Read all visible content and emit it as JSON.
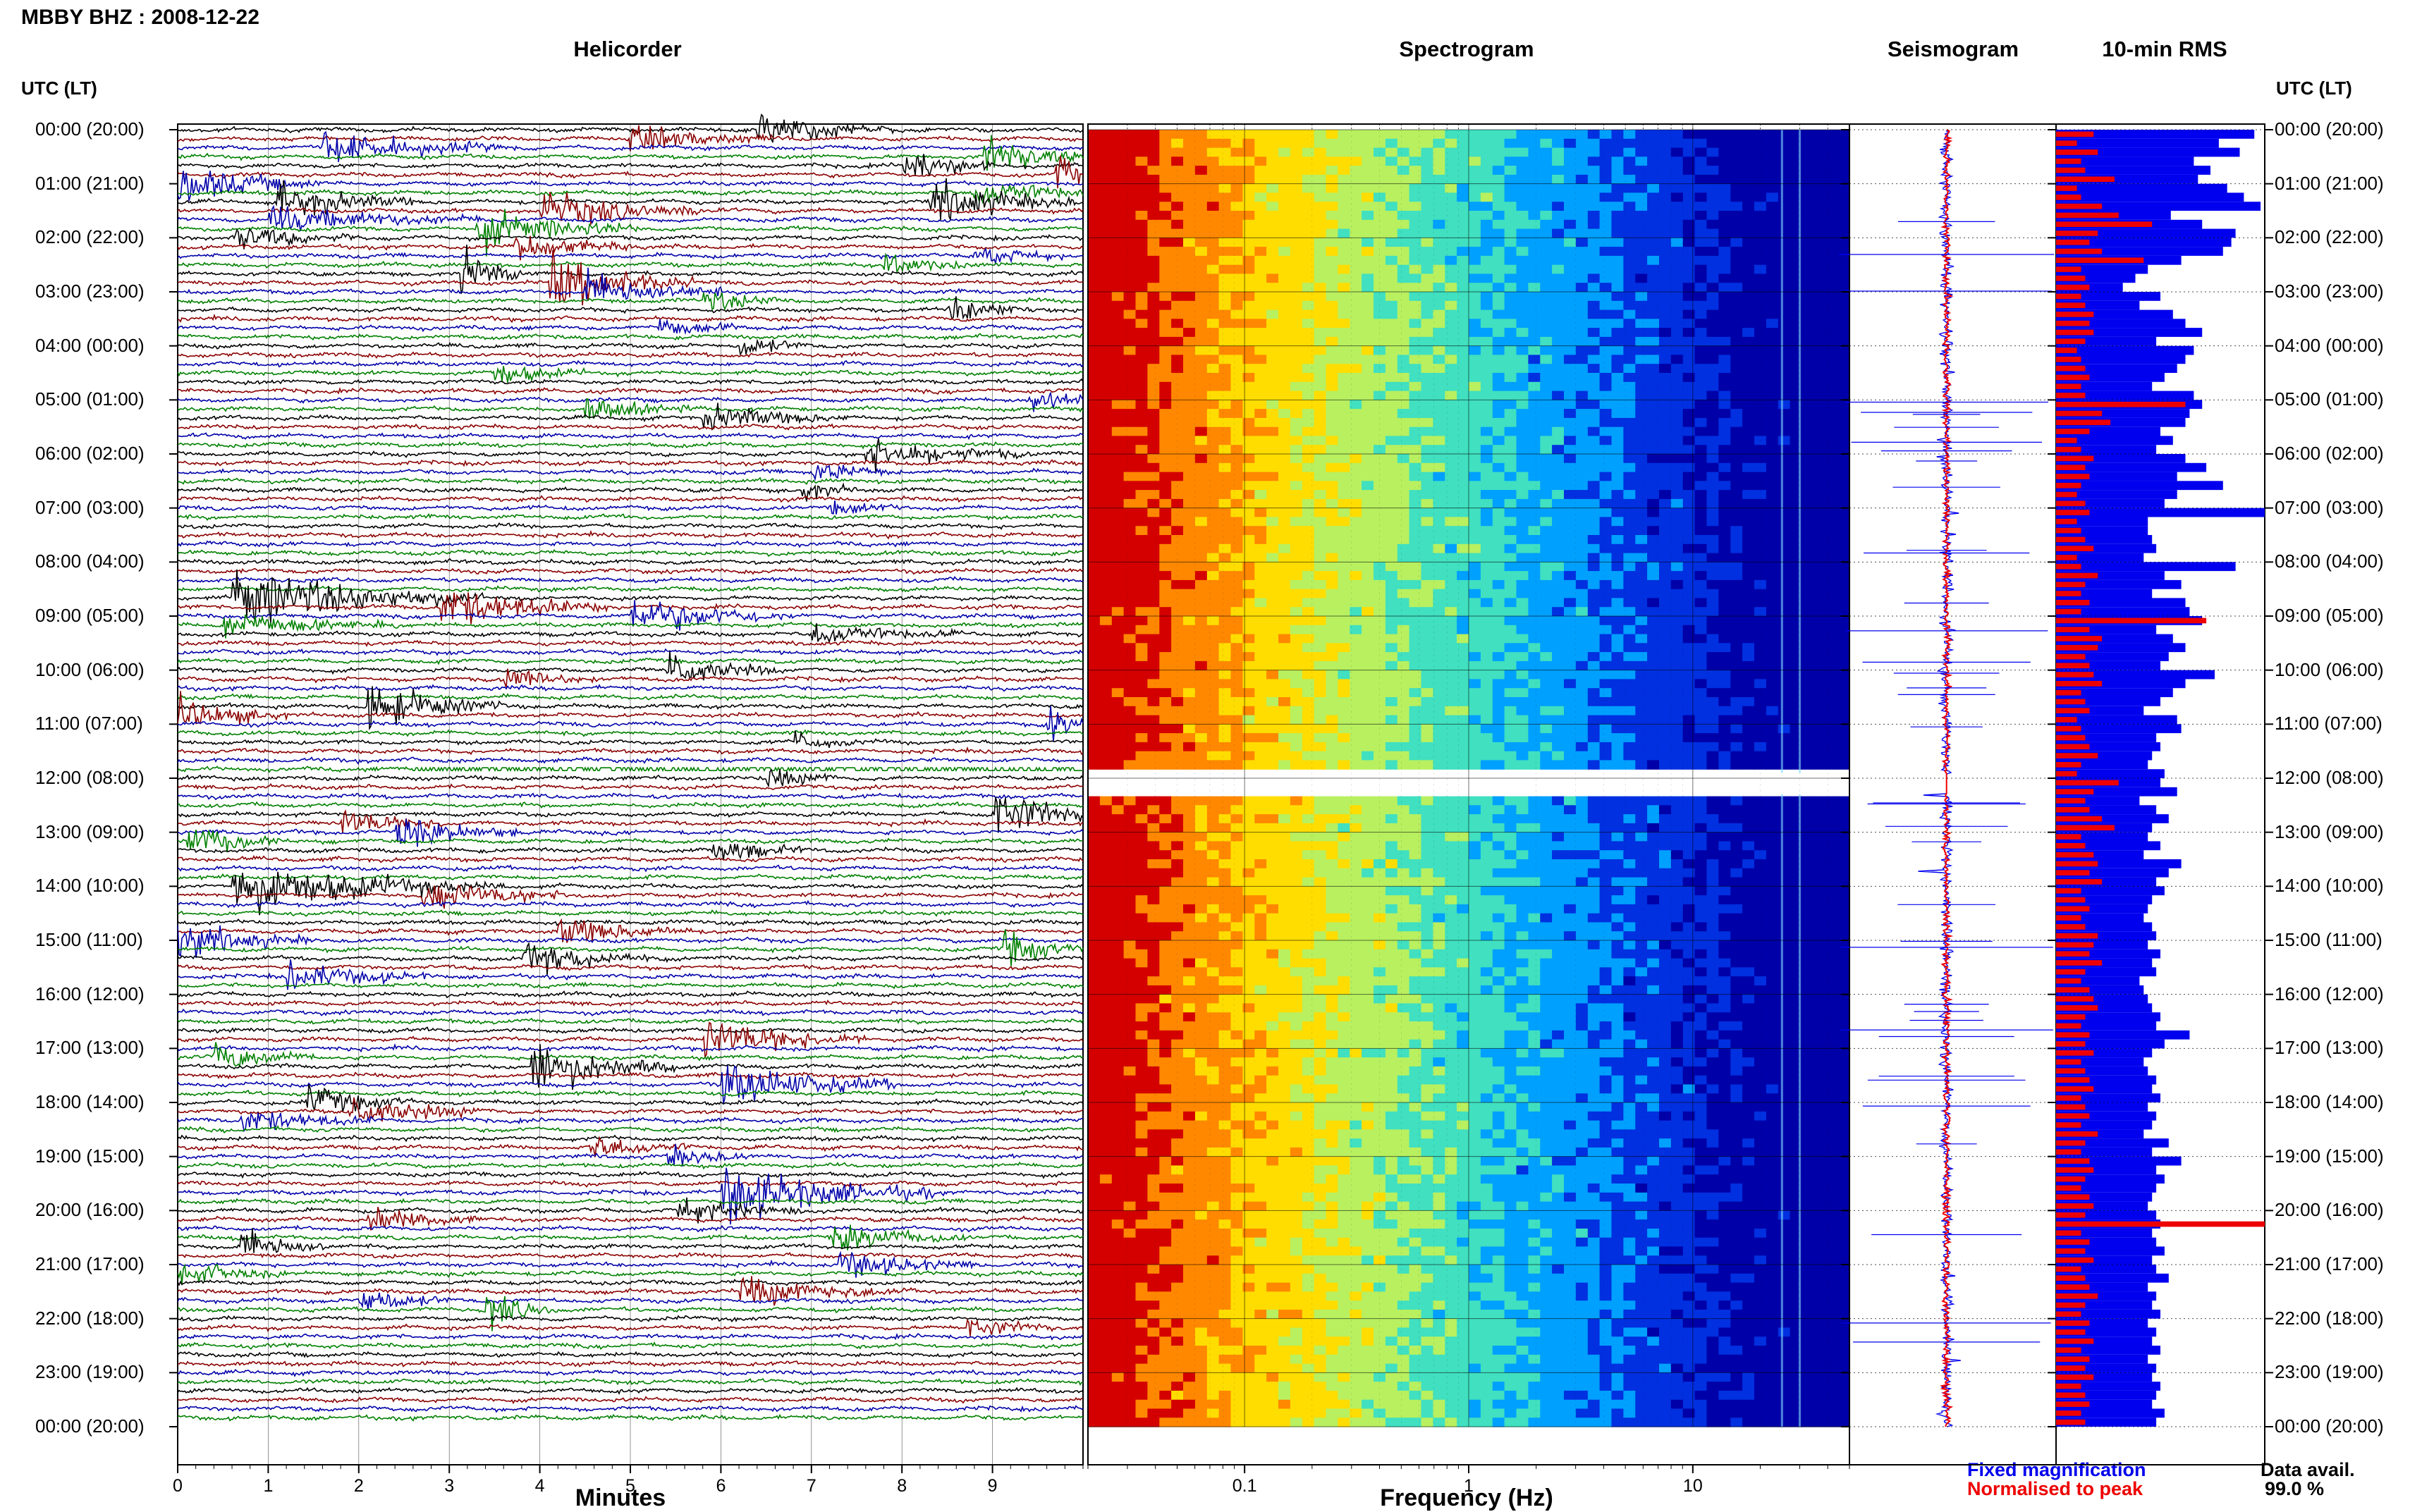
{
  "header": {
    "station_title": "MBBY BHZ : 2008-12-22",
    "panel_titles": {
      "helicorder": "Helicorder",
      "spectrogram": "Spectrogram",
      "seismogram": "Seismogram",
      "rms": "10-min RMS"
    },
    "time_axis_title_left": "UTC (LT)",
    "time_axis_title_right": "UTC (LT)"
  },
  "chart_data": [
    {
      "type": "line",
      "panel": "Helicorder",
      "xlabel": "Minutes",
      "x_ticks": [
        "0",
        "1",
        "2",
        "3",
        "4",
        "5",
        "6",
        "7",
        "8",
        "9"
      ],
      "xlim": [
        0,
        10
      ],
      "rows_per_hour": 6,
      "trace_colors": [
        "#000000",
        "#8b0000",
        "#0000aa",
        "#008000"
      ],
      "y_tick_labels": [
        "00:00 (20:00)",
        "01:00 (21:00)",
        "02:00 (22:00)",
        "03:00 (23:00)",
        "04:00 (00:00)",
        "05:00 (01:00)",
        "06:00 (02:00)",
        "07:00 (03:00)",
        "08:00 (04:00)",
        "09:00 (05:00)",
        "10:00 (06:00)",
        "11:00 (07:00)",
        "12:00 (08:00)",
        "13:00 (09:00)",
        "14:00 (10:00)",
        "15:00 (11:00)",
        "16:00 (12:00)",
        "17:00 (13:00)",
        "18:00 (14:00)",
        "19:00 (15:00)",
        "20:00 (16:00)",
        "21:00 (17:00)",
        "22:00 (18:00)",
        "23:00 (19:00)",
        "00:00 (20:00)"
      ],
      "events": [
        {
          "row": 0,
          "minute": 6.4,
          "amp": 2.2,
          "len": 1.5
        },
        {
          "row": 1,
          "minute": 5.0,
          "amp": 1.4,
          "len": 1.8
        },
        {
          "row": 2,
          "minute": 1.6,
          "amp": 1.8,
          "len": 2.2
        },
        {
          "row": 3,
          "minute": 8.9,
          "amp": 2.5,
          "len": 1.2
        },
        {
          "row": 4,
          "minute": 8.0,
          "amp": 2.2,
          "len": 1.0
        },
        {
          "row": 5,
          "minute": 9.7,
          "amp": 3.2,
          "len": 0.4
        },
        {
          "row": 6,
          "minute": 0.0,
          "amp": 2.4,
          "len": 1.6
        },
        {
          "row": 7,
          "minute": 8.8,
          "amp": 1.8,
          "len": 1.5
        },
        {
          "row": 8,
          "minute": 1.1,
          "amp": 2.4,
          "len": 1.5
        },
        {
          "row": 8,
          "minute": 8.3,
          "amp": 2.5,
          "len": 1.8
        },
        {
          "row": 9,
          "minute": 4.0,
          "amp": 2.2,
          "len": 2.0
        },
        {
          "row": 10,
          "minute": 1.0,
          "amp": 1.6,
          "len": 2.5
        },
        {
          "row": 11,
          "minute": 3.3,
          "amp": 2.4,
          "len": 1.8
        },
        {
          "row": 12,
          "minute": 0.6,
          "amp": 1.6,
          "len": 1.4
        },
        {
          "row": 13,
          "minute": 3.7,
          "amp": 1.6,
          "len": 1.4
        },
        {
          "row": 14,
          "minute": 8.8,
          "amp": 1.4,
          "len": 1.0
        },
        {
          "row": 15,
          "minute": 7.8,
          "amp": 1.4,
          "len": 1.0
        },
        {
          "row": 16,
          "minute": 3.1,
          "amp": 3.2,
          "len": 0.7
        },
        {
          "row": 17,
          "minute": 4.1,
          "amp": 3.6,
          "len": 1.6
        },
        {
          "row": 18,
          "minute": 4.5,
          "amp": 2.4,
          "len": 1.5
        },
        {
          "row": 19,
          "minute": 5.8,
          "amp": 1.4,
          "len": 1.0
        },
        {
          "row": 20,
          "minute": 8.5,
          "amp": 1.6,
          "len": 1.2
        },
        {
          "row": 22,
          "minute": 5.3,
          "amp": 1.3,
          "len": 1.0
        },
        {
          "row": 24,
          "minute": 6.2,
          "amp": 1.4,
          "len": 0.8
        },
        {
          "row": 27,
          "minute": 3.5,
          "amp": 1.4,
          "len": 1.0
        },
        {
          "row": 30,
          "minute": 9.4,
          "amp": 2.2,
          "len": 0.6
        },
        {
          "row": 31,
          "minute": 4.5,
          "amp": 1.5,
          "len": 1.2
        },
        {
          "row": 32,
          "minute": 5.8,
          "amp": 1.6,
          "len": 1.6
        },
        {
          "row": 36,
          "minute": 7.6,
          "amp": 2.0,
          "len": 1.8
        },
        {
          "row": 38,
          "minute": 7.0,
          "amp": 1.4,
          "len": 1.0
        },
        {
          "row": 40,
          "minute": 6.9,
          "amp": 1.4,
          "len": 0.6
        },
        {
          "row": 42,
          "minute": 7.2,
          "amp": 1.2,
          "len": 0.8
        },
        {
          "row": 52,
          "minute": 0.6,
          "amp": 3.8,
          "len": 2.8
        },
        {
          "row": 53,
          "minute": 2.9,
          "amp": 2.6,
          "len": 2.0
        },
        {
          "row": 54,
          "minute": 5.0,
          "amp": 2.4,
          "len": 1.8
        },
        {
          "row": 55,
          "minute": 0.5,
          "amp": 1.6,
          "len": 2.0
        },
        {
          "row": 56,
          "minute": 7.0,
          "amp": 1.4,
          "len": 1.6
        },
        {
          "row": 60,
          "minute": 5.4,
          "amp": 2.4,
          "len": 1.2
        },
        {
          "row": 61,
          "minute": 3.6,
          "amp": 1.4,
          "len": 1.0
        },
        {
          "row": 64,
          "minute": 2.1,
          "amp": 3.0,
          "len": 1.5
        },
        {
          "row": 65,
          "minute": 0.0,
          "amp": 2.2,
          "len": 1.2
        },
        {
          "row": 66,
          "minute": 9.6,
          "amp": 3.2,
          "len": 0.4
        },
        {
          "row": 68,
          "minute": 6.8,
          "amp": 1.2,
          "len": 0.8
        },
        {
          "row": 72,
          "minute": 6.5,
          "amp": 1.4,
          "len": 0.8
        },
        {
          "row": 76,
          "minute": 9.0,
          "amp": 3.4,
          "len": 1.2
        },
        {
          "row": 77,
          "minute": 1.8,
          "amp": 1.8,
          "len": 1.2
        },
        {
          "row": 78,
          "minute": 2.4,
          "amp": 2.2,
          "len": 1.4
        },
        {
          "row": 79,
          "minute": 0.1,
          "amp": 2.2,
          "len": 1.0
        },
        {
          "row": 80,
          "minute": 5.9,
          "amp": 1.6,
          "len": 1.0
        },
        {
          "row": 84,
          "minute": 0.6,
          "amp": 3.2,
          "len": 3.0
        },
        {
          "row": 85,
          "minute": 2.7,
          "amp": 1.8,
          "len": 1.8
        },
        {
          "row": 89,
          "minute": 4.2,
          "amp": 1.8,
          "len": 1.5
        },
        {
          "row": 90,
          "minute": 0.0,
          "amp": 2.2,
          "len": 1.5
        },
        {
          "row": 91,
          "minute": 9.1,
          "amp": 2.4,
          "len": 0.9
        },
        {
          "row": 92,
          "minute": 3.8,
          "amp": 2.0,
          "len": 1.6
        },
        {
          "row": 94,
          "minute": 1.2,
          "amp": 1.8,
          "len": 1.6
        },
        {
          "row": 101,
          "minute": 5.8,
          "amp": 2.6,
          "len": 1.8
        },
        {
          "row": 103,
          "minute": 0.4,
          "amp": 1.8,
          "len": 1.2
        },
        {
          "row": 104,
          "minute": 3.9,
          "amp": 3.6,
          "len": 1.6
        },
        {
          "row": 106,
          "minute": 6.0,
          "amp": 2.8,
          "len": 2.0
        },
        {
          "row": 108,
          "minute": 1.4,
          "amp": 2.0,
          "len": 1.2
        },
        {
          "row": 109,
          "minute": 1.9,
          "amp": 2.0,
          "len": 1.6
        },
        {
          "row": 110,
          "minute": 0.7,
          "amp": 1.6,
          "len": 1.5
        },
        {
          "row": 113,
          "minute": 4.5,
          "amp": 1.6,
          "len": 1.2
        },
        {
          "row": 114,
          "minute": 5.4,
          "amp": 1.4,
          "len": 1.0
        },
        {
          "row": 118,
          "minute": 6.0,
          "amp": 3.6,
          "len": 2.4
        },
        {
          "row": 120,
          "minute": 5.5,
          "amp": 1.6,
          "len": 1.6
        },
        {
          "row": 121,
          "minute": 2.1,
          "amp": 1.6,
          "len": 1.2
        },
        {
          "row": 123,
          "minute": 7.2,
          "amp": 1.8,
          "len": 1.5
        },
        {
          "row": 124,
          "minute": 0.7,
          "amp": 2.4,
          "len": 1.0
        },
        {
          "row": 126,
          "minute": 7.3,
          "amp": 1.8,
          "len": 1.5
        },
        {
          "row": 127,
          "minute": 0.0,
          "amp": 1.6,
          "len": 1.2
        },
        {
          "row": 129,
          "minute": 6.2,
          "amp": 1.8,
          "len": 2.0
        },
        {
          "row": 130,
          "minute": 2.0,
          "amp": 1.8,
          "len": 1.0
        },
        {
          "row": 131,
          "minute": 3.4,
          "amp": 2.4,
          "len": 0.8
        },
        {
          "row": 133,
          "minute": 8.7,
          "amp": 1.4,
          "len": 1.0
        }
      ],
      "gap": {
        "row": 71,
        "from_minute": 2.6,
        "to_minute": 10.0
      }
    },
    {
      "type": "heatmap",
      "panel": "Spectrogram",
      "xlabel": "Frequency (Hz)",
      "x_scale": "log",
      "xlim": [
        0.02,
        50
      ],
      "x_tick_labels": [
        {
          "value": 0.1,
          "label": "0.1"
        },
        {
          "value": 1,
          "label": "1"
        },
        {
          "value": 10,
          "label": "10"
        }
      ],
      "colormap": [
        "#d40000",
        "#ff8800",
        "#ffdd00",
        "#b8f060",
        "#40e0c0",
        "#00a0ff",
        "#0030e0",
        "#0000a8"
      ],
      "gap_hours": [
        11.9,
        12.3
      ],
      "bright_lines_hz": [
        25,
        30
      ]
    },
    {
      "type": "line",
      "panel": "Seismogram",
      "series": [
        {
          "name": "Fixed magnification",
          "color": "#0000ee"
        },
        {
          "name": "Normalised to peak",
          "color": "#ee0000"
        }
      ],
      "gap_hours": [
        11.9,
        12.3
      ]
    },
    {
      "type": "bar",
      "panel": "10-min RMS",
      "orientation": "horizontal",
      "bins_per_hour": 6,
      "xlim": [
        0,
        1
      ],
      "series": [
        {
          "name": "Fixed magnification",
          "color": "#0000ee",
          "values": [
            0.95,
            0.78,
            0.88,
            0.66,
            0.74,
            0.68,
            0.82,
            0.9,
            0.98,
            0.55,
            0.7,
            0.86,
            0.84,
            0.8,
            0.6,
            0.44,
            0.38,
            0.32,
            0.5,
            0.4,
            0.56,
            0.62,
            0.7,
            0.48,
            0.66,
            0.62,
            0.58,
            0.52,
            0.46,
            0.66,
            0.7,
            0.64,
            0.62,
            0.5,
            0.56,
            0.48,
            0.62,
            0.72,
            0.58,
            0.8,
            0.58,
            0.52,
            1.0,
            0.44,
            0.44,
            0.46,
            0.48,
            0.42,
            0.86,
            0.52,
            0.6,
            0.46,
            0.62,
            0.64,
            0.7,
            0.48,
            0.56,
            0.62,
            0.54,
            0.5,
            0.76,
            0.62,
            0.56,
            0.5,
            0.42,
            0.58,
            0.6,
            0.48,
            0.5,
            0.46,
            0.44,
            0.52,
            0.5,
            0.58,
            0.4,
            0.48,
            0.54,
            0.46,
            0.44,
            0.5,
            0.42,
            0.6,
            0.54,
            0.48,
            0.52,
            0.46,
            0.44,
            0.42,
            0.46,
            0.48,
            0.44,
            0.5,
            0.46,
            0.48,
            0.4,
            0.42,
            0.44,
            0.46,
            0.5,
            0.48,
            0.64,
            0.52,
            0.46,
            0.42,
            0.44,
            0.48,
            0.46,
            0.5,
            0.44,
            0.48,
            0.46,
            0.42,
            0.54,
            0.46,
            0.6,
            0.48,
            0.52,
            0.48,
            0.46,
            0.44,
            0.48,
            0.5,
            0.46,
            0.48,
            0.52,
            0.46,
            0.48,
            0.54,
            0.44,
            0.48,
            0.46,
            0.5,
            0.44,
            0.48,
            0.46,
            0.5,
            0.44,
            0.48,
            0.46,
            0.5,
            0.48,
            0.46,
            0.52,
            0.48
          ]
        },
        {
          "name": "Normalised to peak",
          "color": "#ee0000",
          "values": [
            0.18,
            0.1,
            0.2,
            0.12,
            0.14,
            0.28,
            0.1,
            0.12,
            0.22,
            0.3,
            0.46,
            0.2,
            0.16,
            0.22,
            0.42,
            0.12,
            0.14,
            0.16,
            0.12,
            0.14,
            0.18,
            0.16,
            0.18,
            0.14,
            0.1,
            0.12,
            0.14,
            0.16,
            0.12,
            0.14,
            0.62,
            0.22,
            0.26,
            0.16,
            0.1,
            0.12,
            0.18,
            0.14,
            0.16,
            0.12,
            0.1,
            0.14,
            0.16,
            0.1,
            0.12,
            0.14,
            0.18,
            0.1,
            0.12,
            0.2,
            0.14,
            0.12,
            0.16,
            0.12,
            0.72,
            0.16,
            0.22,
            0.2,
            0.14,
            0.16,
            0.18,
            0.22,
            0.12,
            0.14,
            0.16,
            0.1,
            0.12,
            0.14,
            0.16,
            0.2,
            0.12,
            0.1,
            0.3,
            0.18,
            0.14,
            0.16,
            0.22,
            0.28,
            0.12,
            0.14,
            0.18,
            0.2,
            0.16,
            0.22,
            0.12,
            0.14,
            0.16,
            0.12,
            0.14,
            0.2,
            0.18,
            0.16,
            0.22,
            0.14,
            0.12,
            0.16,
            0.18,
            0.2,
            0.14,
            0.12,
            0.16,
            0.14,
            0.18,
            0.12,
            0.14,
            0.16,
            0.18,
            0.12,
            0.14,
            0.16,
            0.12,
            0.2,
            0.14,
            0.12,
            0.16,
            0.18,
            0.14,
            0.12,
            0.16,
            0.18,
            0.14,
            1.0,
            0.12,
            0.16,
            0.14,
            0.18,
            0.12,
            0.14,
            0.16,
            0.2,
            0.14,
            0.12,
            0.16,
            0.14,
            0.18,
            0.12,
            0.16,
            0.14,
            0.18,
            0.12,
            0.14,
            0.16,
            0.12,
            0.14
          ]
        }
      ]
    }
  ],
  "legend": {
    "fixed_label": "Fixed magnification",
    "normalised_label": "Normalised to peak"
  },
  "data_availability": {
    "label": "Data avail.",
    "value": "99.0 %"
  }
}
